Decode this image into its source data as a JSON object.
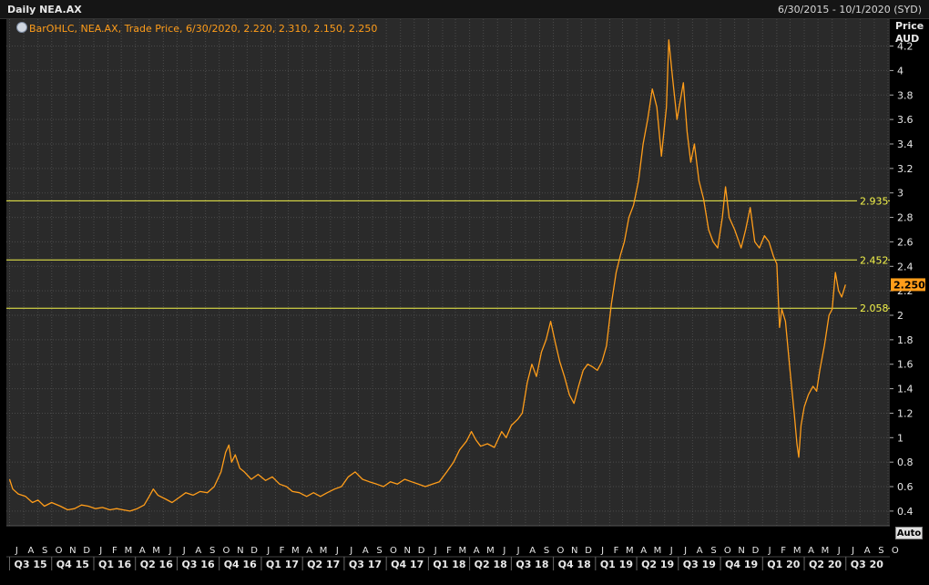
{
  "header": {
    "title": "Daily NEA.AX",
    "date_range": "6/30/2015 - 10/1/2020 (SYD)"
  },
  "legend": {
    "text": "BarOHLC, NEA.AX, Trade Price, 6/30/2020, 2.220, 2.310, 2.150, 2.250"
  },
  "axis": {
    "price_label": "Price",
    "unit_label": "AUD",
    "auto_button": "Auto"
  },
  "chart_data": {
    "type": "line",
    "title": "Daily NEA.AX",
    "series": [
      {
        "name": "NEA.AX",
        "points": [
          [
            "2015-07-01",
            0.66
          ],
          [
            "2015-07-08",
            0.58
          ],
          [
            "2015-07-20",
            0.54
          ],
          [
            "2015-08-05",
            0.52
          ],
          [
            "2015-08-20",
            0.47
          ],
          [
            "2015-09-01",
            0.49
          ],
          [
            "2015-09-15",
            0.44
          ],
          [
            "2015-10-01",
            0.47
          ],
          [
            "2015-10-20",
            0.44
          ],
          [
            "2015-11-05",
            0.41
          ],
          [
            "2015-11-20",
            0.42
          ],
          [
            "2015-12-05",
            0.45
          ],
          [
            "2015-12-20",
            0.44
          ],
          [
            "2016-01-05",
            0.42
          ],
          [
            "2016-01-20",
            0.43
          ],
          [
            "2016-02-05",
            0.41
          ],
          [
            "2016-02-20",
            0.42
          ],
          [
            "2016-03-05",
            0.41
          ],
          [
            "2016-03-20",
            0.4
          ],
          [
            "2016-04-05",
            0.42
          ],
          [
            "2016-04-20",
            0.45
          ],
          [
            "2016-05-01",
            0.52
          ],
          [
            "2016-05-10",
            0.58
          ],
          [
            "2016-05-20",
            0.53
          ],
          [
            "2016-06-05",
            0.5
          ],
          [
            "2016-06-20",
            0.47
          ],
          [
            "2016-07-05",
            0.51
          ],
          [
            "2016-07-20",
            0.55
          ],
          [
            "2016-08-05",
            0.53
          ],
          [
            "2016-08-20",
            0.56
          ],
          [
            "2016-09-05",
            0.55
          ],
          [
            "2016-09-20",
            0.6
          ],
          [
            "2016-10-05",
            0.72
          ],
          [
            "2016-10-15",
            0.88
          ],
          [
            "2016-10-22",
            0.94
          ],
          [
            "2016-10-28",
            0.8
          ],
          [
            "2016-11-05",
            0.86
          ],
          [
            "2016-11-15",
            0.75
          ],
          [
            "2016-11-25",
            0.72
          ],
          [
            "2016-12-10",
            0.66
          ],
          [
            "2016-12-25",
            0.7
          ],
          [
            "2017-01-10",
            0.65
          ],
          [
            "2017-01-25",
            0.68
          ],
          [
            "2017-02-10",
            0.62
          ],
          [
            "2017-02-25",
            0.6
          ],
          [
            "2017-03-10",
            0.56
          ],
          [
            "2017-03-25",
            0.55
          ],
          [
            "2017-04-10",
            0.52
          ],
          [
            "2017-04-25",
            0.55
          ],
          [
            "2017-05-10",
            0.52
          ],
          [
            "2017-05-25",
            0.55
          ],
          [
            "2017-06-10",
            0.58
          ],
          [
            "2017-06-25",
            0.6
          ],
          [
            "2017-07-10",
            0.68
          ],
          [
            "2017-07-25",
            0.72
          ],
          [
            "2017-08-10",
            0.66
          ],
          [
            "2017-08-25",
            0.64
          ],
          [
            "2017-09-10",
            0.62
          ],
          [
            "2017-09-25",
            0.6
          ],
          [
            "2017-10-10",
            0.64
          ],
          [
            "2017-10-25",
            0.62
          ],
          [
            "2017-11-10",
            0.66
          ],
          [
            "2017-11-25",
            0.64
          ],
          [
            "2017-12-10",
            0.62
          ],
          [
            "2017-12-25",
            0.6
          ],
          [
            "2018-01-10",
            0.62
          ],
          [
            "2018-01-25",
            0.64
          ],
          [
            "2018-02-10",
            0.72
          ],
          [
            "2018-02-25",
            0.8
          ],
          [
            "2018-03-10",
            0.9
          ],
          [
            "2018-03-25",
            0.97
          ],
          [
            "2018-04-05",
            1.05
          ],
          [
            "2018-04-15",
            0.98
          ],
          [
            "2018-04-25",
            0.93
          ],
          [
            "2018-05-10",
            0.95
          ],
          [
            "2018-05-25",
            0.92
          ],
          [
            "2018-06-10",
            1.05
          ],
          [
            "2018-06-20",
            1.0
          ],
          [
            "2018-07-01",
            1.1
          ],
          [
            "2018-07-15",
            1.15
          ],
          [
            "2018-07-25",
            1.2
          ],
          [
            "2018-08-05",
            1.45
          ],
          [
            "2018-08-15",
            1.6
          ],
          [
            "2018-08-25",
            1.5
          ],
          [
            "2018-09-05",
            1.7
          ],
          [
            "2018-09-15",
            1.8
          ],
          [
            "2018-09-25",
            1.95
          ],
          [
            "2018-10-05",
            1.78
          ],
          [
            "2018-10-15",
            1.62
          ],
          [
            "2018-10-25",
            1.5
          ],
          [
            "2018-11-05",
            1.35
          ],
          [
            "2018-11-15",
            1.28
          ],
          [
            "2018-11-25",
            1.42
          ],
          [
            "2018-12-05",
            1.55
          ],
          [
            "2018-12-15",
            1.6
          ],
          [
            "2018-12-25",
            1.58
          ],
          [
            "2019-01-05",
            1.55
          ],
          [
            "2019-01-15",
            1.62
          ],
          [
            "2019-01-25",
            1.75
          ],
          [
            "2019-02-05",
            2.1
          ],
          [
            "2019-02-15",
            2.35
          ],
          [
            "2019-02-25",
            2.5
          ],
          [
            "2019-03-05",
            2.6
          ],
          [
            "2019-03-15",
            2.8
          ],
          [
            "2019-03-25",
            2.9
          ],
          [
            "2019-04-05",
            3.1
          ],
          [
            "2019-04-15",
            3.4
          ],
          [
            "2019-04-25",
            3.6
          ],
          [
            "2019-05-05",
            3.85
          ],
          [
            "2019-05-15",
            3.7
          ],
          [
            "2019-05-25",
            3.3
          ],
          [
            "2019-06-05",
            3.7
          ],
          [
            "2019-06-10",
            4.25
          ],
          [
            "2019-06-18",
            3.95
          ],
          [
            "2019-06-28",
            3.6
          ],
          [
            "2019-07-05",
            3.75
          ],
          [
            "2019-07-12",
            3.9
          ],
          [
            "2019-07-20",
            3.5
          ],
          [
            "2019-07-28",
            3.25
          ],
          [
            "2019-08-05",
            3.4
          ],
          [
            "2019-08-15",
            3.1
          ],
          [
            "2019-08-25",
            2.95
          ],
          [
            "2019-09-05",
            2.7
          ],
          [
            "2019-09-15",
            2.6
          ],
          [
            "2019-09-25",
            2.55
          ],
          [
            "2019-10-05",
            2.8
          ],
          [
            "2019-10-12",
            3.05
          ],
          [
            "2019-10-20",
            2.8
          ],
          [
            "2019-11-01",
            2.7
          ],
          [
            "2019-11-15",
            2.55
          ],
          [
            "2019-11-25",
            2.7
          ],
          [
            "2019-12-05",
            2.88
          ],
          [
            "2019-12-15",
            2.6
          ],
          [
            "2019-12-25",
            2.55
          ],
          [
            "2020-01-05",
            2.65
          ],
          [
            "2020-01-15",
            2.6
          ],
          [
            "2020-01-25",
            2.48
          ],
          [
            "2020-02-01",
            2.42
          ],
          [
            "2020-02-07",
            1.9
          ],
          [
            "2020-02-12",
            2.05
          ],
          [
            "2020-02-20",
            1.95
          ],
          [
            "2020-03-01",
            1.55
          ],
          [
            "2020-03-10",
            1.2
          ],
          [
            "2020-03-16",
            0.95
          ],
          [
            "2020-03-20",
            0.84
          ],
          [
            "2020-03-25",
            1.1
          ],
          [
            "2020-04-01",
            1.25
          ],
          [
            "2020-04-10",
            1.35
          ],
          [
            "2020-04-20",
            1.42
          ],
          [
            "2020-04-28",
            1.38
          ],
          [
            "2020-05-05",
            1.55
          ],
          [
            "2020-05-15",
            1.75
          ],
          [
            "2020-05-25",
            2.0
          ],
          [
            "2020-06-01",
            2.05
          ],
          [
            "2020-06-08",
            2.35
          ],
          [
            "2020-06-15",
            2.2
          ],
          [
            "2020-06-22",
            2.15
          ],
          [
            "2020-06-30",
            2.25
          ]
        ]
      }
    ],
    "x_range": [
      "2015-06-30",
      "2020-10-01"
    ],
    "y_ticks": [
      0.4,
      0.6,
      0.8,
      1,
      1.2,
      1.4,
      1.6,
      1.8,
      2,
      2.2,
      2.4,
      2.6,
      2.8,
      3,
      3.2,
      3.4,
      3.6,
      3.8,
      4,
      4.2
    ],
    "ylim": [
      0.28,
      4.42
    ],
    "horizontal_lines": [
      {
        "value": 2.935,
        "label": "2.935"
      },
      {
        "value": 2.452,
        "label": "2.452"
      },
      {
        "value": 2.058,
        "label": "2.058"
      }
    ],
    "last_price": {
      "value": 2.25,
      "label": "2.250"
    },
    "month_labels": [
      "J",
      "A",
      "S",
      "O",
      "N",
      "D",
      "J",
      "F",
      "M",
      "A",
      "M",
      "J",
      "J",
      "A",
      "S",
      "O",
      "N",
      "D",
      "J",
      "F",
      "M",
      "A",
      "M",
      "J",
      "J",
      "A",
      "S",
      "O",
      "N",
      "D",
      "J",
      "F",
      "M",
      "A",
      "M",
      "J",
      "J",
      "A",
      "S",
      "O",
      "N",
      "D",
      "J",
      "F",
      "M",
      "A",
      "M",
      "J",
      "J",
      "A",
      "S",
      "O",
      "N",
      "D",
      "J",
      "F",
      "M",
      "A",
      "M",
      "J",
      "J",
      "A",
      "S",
      "O"
    ],
    "quarter_labels": [
      "Q3 15",
      "Q4 15",
      "Q1 16",
      "Q2 16",
      "Q3 16",
      "Q4 16",
      "Q1 17",
      "Q2 17",
      "Q3 17",
      "Q4 17",
      "Q1 18",
      "Q2 18",
      "Q3 18",
      "Q4 18",
      "Q1 19",
      "Q2 19",
      "Q3 19",
      "Q4 19",
      "Q1 20",
      "Q2 20",
      "Q3 20"
    ],
    "grid": true,
    "colors": {
      "series": "#ff9d1a",
      "hline": "#f3f34a",
      "grid": "#4a4a4a",
      "background": "#2a2a2a",
      "last_price_bg": "#ff9d1a"
    }
  }
}
